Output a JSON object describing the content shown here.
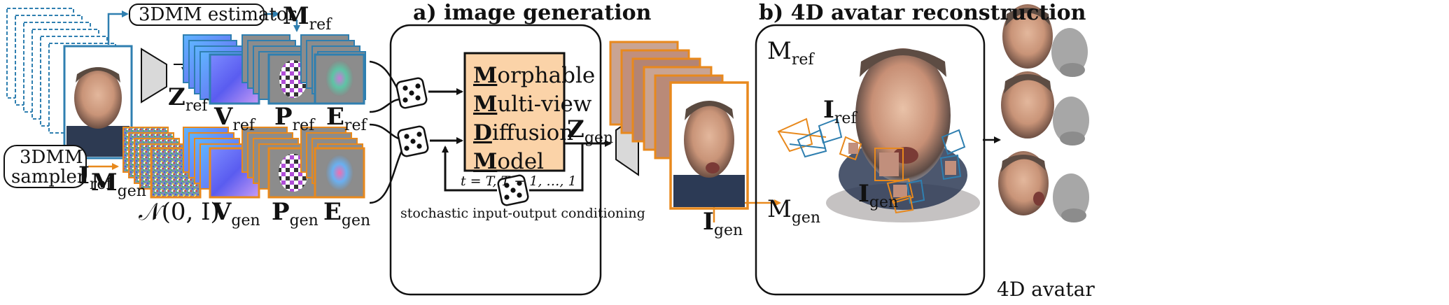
{
  "sections": {
    "image_generation": "a) image generation",
    "avatar_reconstruction": "b) 4D avatar reconstruction"
  },
  "blocks": {
    "estimator": "3DMM estimator",
    "sampler_line1": "3DMM",
    "sampler_line2": "sampler"
  },
  "symbols": {
    "m_ref": {
      "main": "M",
      "sub": "ref"
    },
    "z_ref": {
      "main": "Z",
      "sub": "ref"
    },
    "i_ref": {
      "main": "I",
      "sub": "ref"
    },
    "v_ref": {
      "main": "V",
      "sub": "ref"
    },
    "p_ref": {
      "main": "P",
      "sub": "ref"
    },
    "e_ref": {
      "main": "E",
      "sub": "ref"
    },
    "m_gen": {
      "main": "M",
      "sub": "gen"
    },
    "noise": "𝒩(0, I)",
    "v_gen": {
      "main": "V",
      "sub": "gen"
    },
    "p_gen": {
      "main": "P",
      "sub": "gen"
    },
    "e_gen": {
      "main": "E",
      "sub": "gen"
    },
    "z_gen": {
      "main": "Z",
      "sub": "gen"
    },
    "i_gen": {
      "main": "I",
      "sub": "gen"
    },
    "recon_m_ref": {
      "main": "M",
      "sub": "ref"
    },
    "recon_i_ref": {
      "main": "I",
      "sub": "ref"
    },
    "recon_i_gen": {
      "main": "I",
      "sub": "gen"
    },
    "recon_m_gen": {
      "main": "M",
      "sub": "gen"
    }
  },
  "model": {
    "lines": [
      {
        "initial": "M",
        "rest": "orphable"
      },
      {
        "initial": "M",
        "rest": "ulti-view"
      },
      {
        "initial": "D",
        "rest": "iffusion"
      },
      {
        "initial": "M",
        "rest": "odel"
      }
    ],
    "timesteps": "t = T, T − 1, …, 1"
  },
  "conditioning_caption": "stochastic input-output conditioning",
  "output_label": "4D avatar",
  "colors": {
    "ref_blue": "#2f7fb0",
    "gen_orange": "#e8891d",
    "model_fill": "#fbd3a8",
    "normal_a": "#5a5cf0",
    "normal_b": "#c79bf5",
    "gray_panel": "#8c8c8c"
  }
}
